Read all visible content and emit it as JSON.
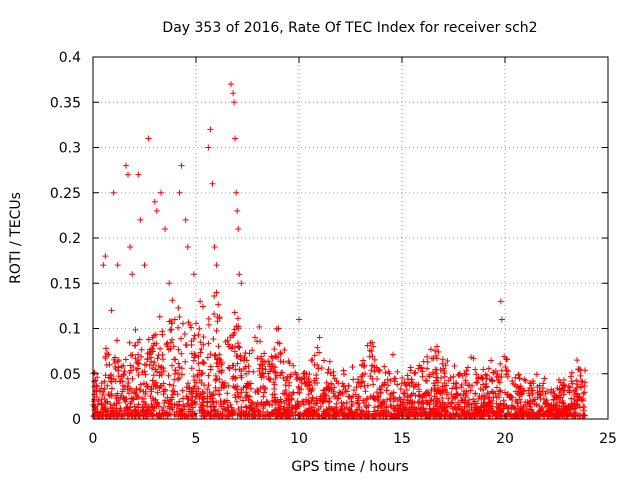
{
  "chart_data": {
    "type": "scatter",
    "title": "Day 353 of 2016, Rate Of TEC Index for receiver sch2",
    "xlabel": "GPS time / hours",
    "ylabel": "ROTI / TECUs",
    "xlim": [
      0,
      25
    ],
    "ylim": [
      0,
      0.4
    ],
    "x_ticks": [
      "0",
      "5",
      "10",
      "15",
      "20",
      "25"
    ],
    "y_ticks": [
      "0",
      "0.05",
      "0.1",
      "0.15",
      "0.2",
      "0.25",
      "0.3",
      "0.35",
      "0.4"
    ],
    "grid": true,
    "marker": "+",
    "color": "#ff0000",
    "series": [
      {
        "envelope_hours": [
          0.0,
          0.5,
          1.0,
          1.5,
          2.0,
          2.5,
          3.0,
          3.5,
          4.0,
          4.5,
          5.0,
          5.5,
          6.0,
          6.5,
          7.0,
          7.5,
          8.0,
          8.5,
          9.0,
          9.5,
          10.0,
          10.5,
          11.0,
          11.5,
          12.0,
          12.5,
          13.0,
          13.5,
          14.0,
          14.5,
          15.0,
          15.5,
          16.0,
          16.5,
          17.0,
          17.5,
          18.0,
          18.5,
          19.0,
          19.5,
          20.0,
          20.5,
          21.0,
          21.5,
          22.0,
          22.5,
          23.0,
          23.5,
          23.9
        ],
        "envelope_roti": [
          0.05,
          0.065,
          0.08,
          0.07,
          0.09,
          0.08,
          0.1,
          0.09,
          0.12,
          0.1,
          0.11,
          0.1,
          0.12,
          0.09,
          0.1,
          0.08,
          0.1,
          0.07,
          0.09,
          0.06,
          0.05,
          0.055,
          0.07,
          0.05,
          0.06,
          0.045,
          0.05,
          0.08,
          0.05,
          0.06,
          0.04,
          0.05,
          0.06,
          0.07,
          0.06,
          0.05,
          0.055,
          0.06,
          0.05,
          0.055,
          0.06,
          0.045,
          0.04,
          0.045,
          0.035,
          0.04,
          0.035,
          0.06,
          0.05
        ],
        "outliers": [
          [
            0.5,
            0.17
          ],
          [
            0.6,
            0.18
          ],
          [
            0.9,
            0.12
          ],
          [
            1.0,
            0.25
          ],
          [
            1.2,
            0.17
          ],
          [
            1.6,
            0.28
          ],
          [
            1.7,
            0.27
          ],
          [
            1.8,
            0.19
          ],
          [
            1.9,
            0.16
          ],
          [
            2.2,
            0.27
          ],
          [
            2.3,
            0.22
          ],
          [
            2.5,
            0.17
          ],
          [
            2.7,
            0.31
          ],
          [
            3.0,
            0.24
          ],
          [
            3.1,
            0.23
          ],
          [
            3.3,
            0.25
          ],
          [
            3.5,
            0.21
          ],
          [
            3.7,
            0.15
          ],
          [
            4.2,
            0.25
          ],
          [
            4.3,
            0.28
          ],
          [
            4.5,
            0.22
          ],
          [
            4.6,
            0.19
          ],
          [
            4.9,
            0.16
          ],
          [
            5.2,
            0.13
          ],
          [
            5.6,
            0.3
          ],
          [
            5.7,
            0.32
          ],
          [
            5.8,
            0.26
          ],
          [
            5.9,
            0.19
          ],
          [
            6.0,
            0.17
          ],
          [
            6.7,
            0.37
          ],
          [
            6.8,
            0.36
          ],
          [
            6.85,
            0.35
          ],
          [
            6.9,
            0.31
          ],
          [
            6.95,
            0.25
          ],
          [
            7.0,
            0.23
          ],
          [
            7.05,
            0.21
          ],
          [
            7.1,
            0.16
          ],
          [
            7.2,
            0.15
          ],
          [
            9.0,
            0.1
          ],
          [
            10.0,
            0.11
          ],
          [
            11.0,
            0.09
          ],
          [
            13.6,
            0.08
          ],
          [
            16.7,
            0.08
          ],
          [
            19.8,
            0.13
          ],
          [
            19.85,
            0.11
          ],
          [
            23.5,
            0.065
          ]
        ]
      }
    ]
  }
}
